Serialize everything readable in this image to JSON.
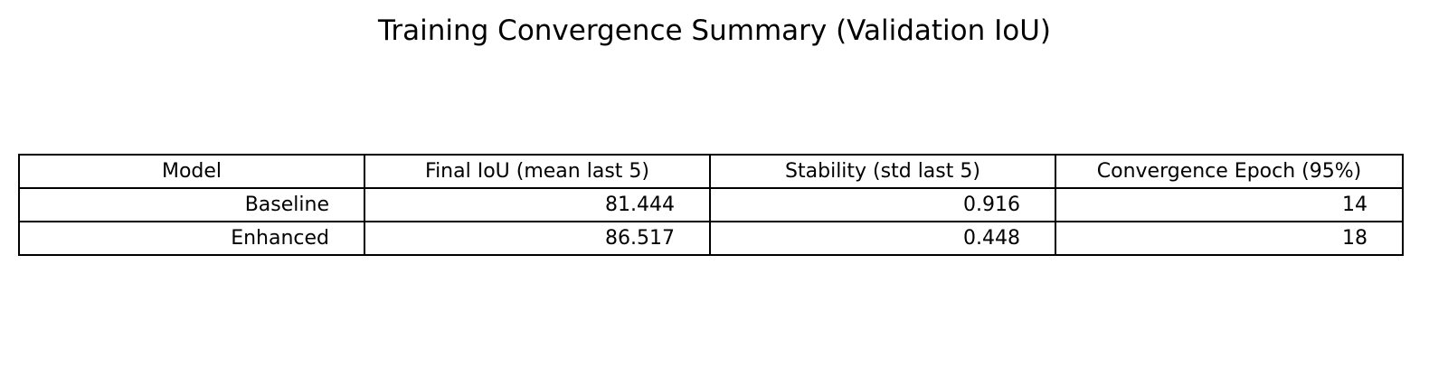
{
  "chart_data": {
    "type": "table",
    "title": "Training Convergence Summary (Validation IoU)",
    "columns": [
      "Model",
      "Final IoU (mean last 5)",
      "Stability (std last 5)",
      "Convergence Epoch (95%)"
    ],
    "rows": [
      [
        "Baseline",
        "81.444",
        "0.916",
        "14"
      ],
      [
        "Enhanced",
        "86.517",
        "0.448",
        "18"
      ]
    ]
  }
}
